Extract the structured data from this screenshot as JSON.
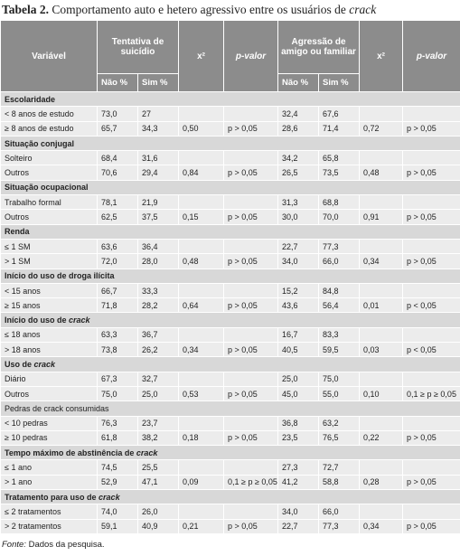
{
  "title": {
    "label": "Tabela 2.",
    "text": "Comportamento auto e hetero agressivo entre os usuários de",
    "emphasis": "crack"
  },
  "table": {
    "header": {
      "variable": "Variável",
      "groups": [
        "Tentativa de suicídio",
        "Agressão de amigo ou familiar"
      ],
      "stat": "x²",
      "p": "p-valor",
      "sub": [
        "Não %",
        "Sim %"
      ]
    },
    "sections": [
      {
        "label": "Escolaridade",
        "bold": true,
        "rows": [
          [
            "< 8 anos de estudo",
            "73,0",
            "27",
            null,
            null,
            "32,4",
            "67,6",
            null,
            null
          ],
          [
            "≥ 8 anos de estudo",
            "65,7",
            "34,3",
            "0,50",
            "p > 0,05",
            "28,6",
            "71,4",
            "0,72",
            "p > 0,05"
          ]
        ]
      },
      {
        "label": "Situação conjugal",
        "bold": true,
        "rows": [
          [
            "Solteiro",
            "68,4",
            "31,6",
            null,
            null,
            "34,2",
            "65,8",
            null,
            null
          ],
          [
            "Outros",
            "70,6",
            "29,4",
            "0,84",
            "p > 0,05",
            "26,5",
            "73,5",
            "0,48",
            "p > 0,05"
          ]
        ]
      },
      {
        "label": "Situação ocupacional",
        "bold": true,
        "rows": [
          [
            "Trabalho formal",
            "78,1",
            "21,9",
            null,
            null,
            "31,3",
            "68,8",
            null,
            null
          ],
          [
            "Outros",
            "62,5",
            "37,5",
            "0,15",
            "p > 0,05",
            "30,0",
            "70,0",
            "0,91",
            "p > 0,05"
          ]
        ]
      },
      {
        "label": "Renda",
        "bold": true,
        "rows": [
          [
            "≤ 1 SM",
            "63,6",
            "36,4",
            null,
            null,
            "22,7",
            "77,3",
            null,
            null
          ],
          [
            "> 1 SM",
            "72,0",
            "28,0",
            "0,48",
            "p > 0,05",
            "34,0",
            "66,0",
            "0,34",
            "p > 0,05"
          ]
        ]
      },
      {
        "label": "Início do uso de droga ilícita",
        "bold": true,
        "rows": [
          [
            "< 15 anos",
            "66,7",
            "33,3",
            null,
            null,
            "15,2",
            "84,8",
            null,
            null
          ],
          [
            "≥ 15 anos",
            "71,8",
            "28,2",
            "0,64",
            "p > 0,05",
            "43,6",
            "56,4",
            "0,01",
            "p < 0,05"
          ]
        ]
      },
      {
        "label": "Início do uso de",
        "emphasis": "crack",
        "bold": true,
        "rows": [
          [
            "≤ 18 anos",
            "63,3",
            "36,7",
            null,
            null,
            "16,7",
            "83,3",
            null,
            null
          ],
          [
            "> 18 anos",
            "73,8",
            "26,2",
            "0,34",
            "p > 0,05",
            "40,5",
            "59,5",
            "0,03",
            "p < 0,05"
          ]
        ]
      },
      {
        "label": "Uso de",
        "emphasis": "crack",
        "bold": true,
        "rows": [
          [
            "Diário",
            "67,3",
            "32,7",
            null,
            null,
            "25,0",
            "75,0",
            null,
            null
          ],
          [
            "Outros",
            "75,0",
            "25,0",
            "0,53",
            "p > 0,05",
            "45,0",
            "55,0",
            "0,10",
            "0,1 ≥ p ≥ 0,05"
          ]
        ]
      },
      {
        "label": "Pedras de crack consumidas",
        "bold": false,
        "rows": [
          [
            "< 10 pedras",
            "76,3",
            "23,7",
            null,
            null,
            "36,8",
            "63,2",
            null,
            null
          ],
          [
            "≥ 10 pedras",
            "61,8",
            "38,2",
            "0,18",
            "p > 0,05",
            "23,5",
            "76,5",
            "0,22",
            "p > 0,05"
          ]
        ]
      },
      {
        "label": "Tempo máximo de abstinência de",
        "emphasis": "crack",
        "bold": true,
        "rows": [
          [
            "≤ 1 ano",
            "74,5",
            "25,5",
            null,
            null,
            "27,3",
            "72,7",
            null,
            null
          ],
          [
            "> 1 ano",
            "52,9",
            "47,1",
            "0,09",
            "0,1 ≥ p ≥ 0,05",
            "41,2",
            "58,8",
            "0,28",
            "p > 0,05"
          ]
        ]
      },
      {
        "label": "Tratamento para uso de",
        "emphasis": "crack",
        "bold": true,
        "rows": [
          [
            "≤ 2 tratamentos",
            "74,0",
            "26,0",
            null,
            null,
            "34,0",
            "66,0",
            null,
            null
          ],
          [
            "> 2 tratamentos",
            "59,1",
            "40,9",
            "0,21",
            "p > 0,05",
            "22,7",
            "77,3",
            "0,34",
            "p > 0,05"
          ]
        ]
      }
    ]
  },
  "footer": {
    "label": "Fonte:",
    "text": "Dados da pesquisa."
  }
}
